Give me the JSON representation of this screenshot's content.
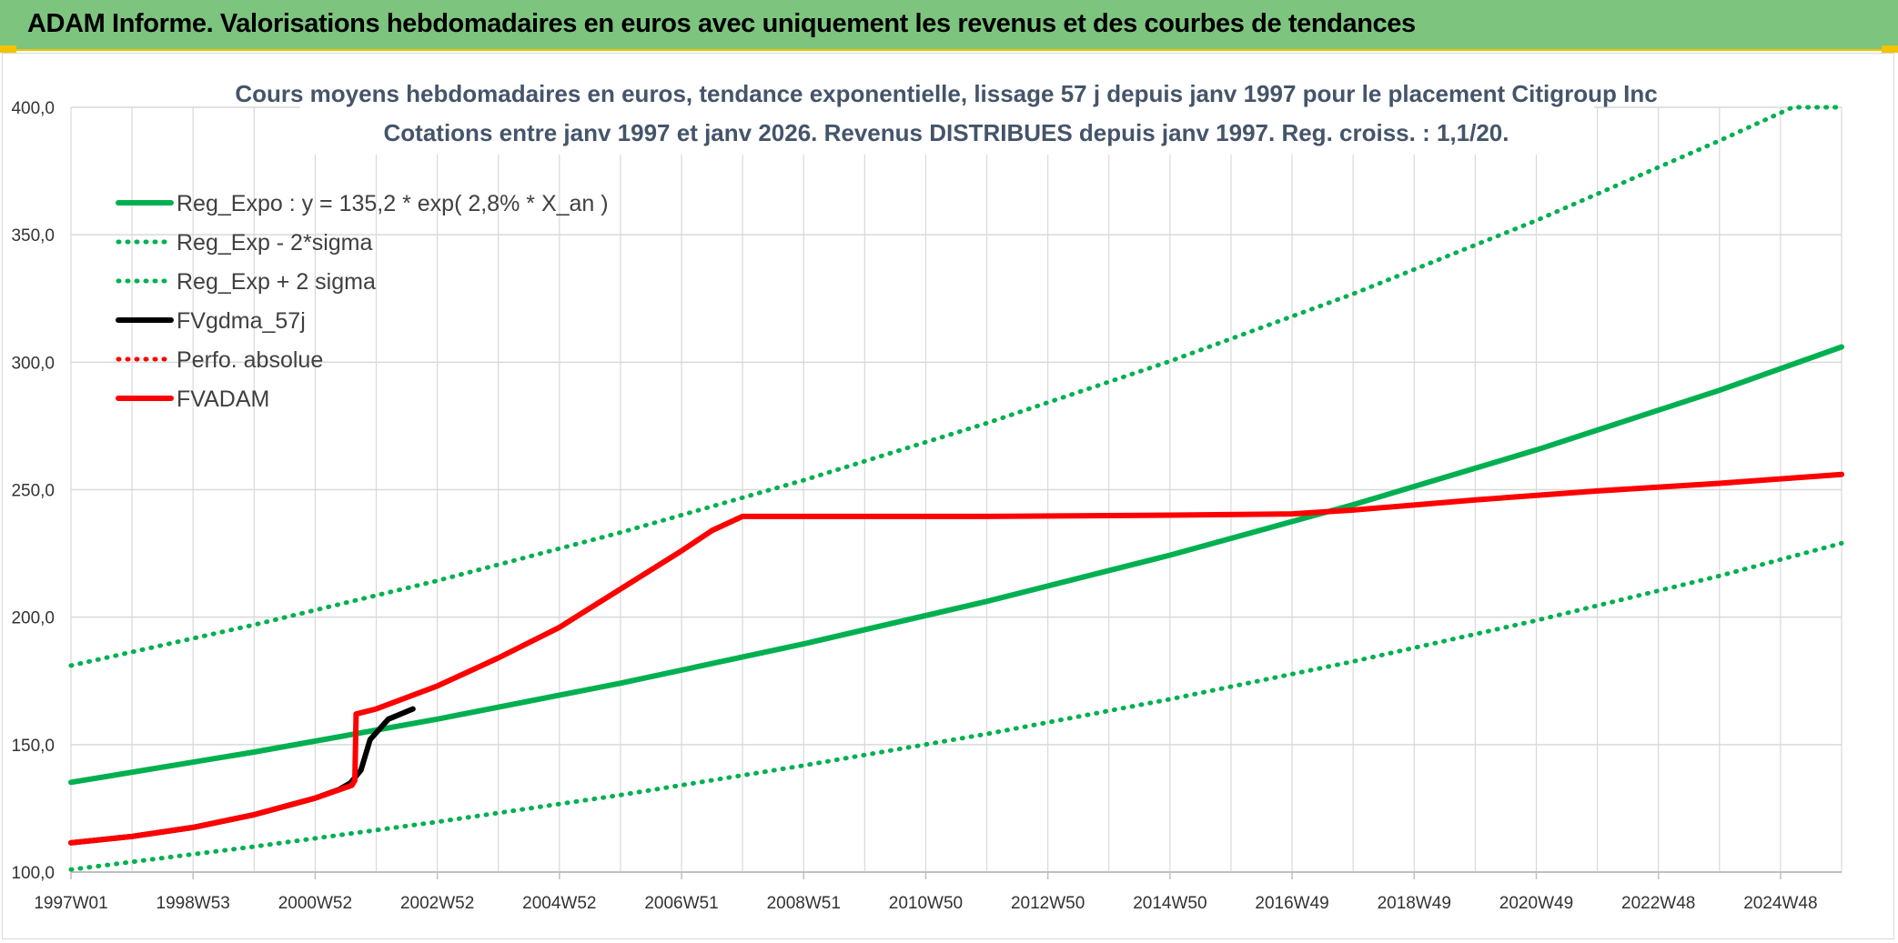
{
  "header": {
    "title": "ADAM Informe. Valorisations hebdomadaires en euros avec uniquement les revenus et des courbes de tendances"
  },
  "colors": {
    "header_bg": "#7dc47f",
    "accent_yellow": "#f3c300",
    "trend_green": "#00b050",
    "red": "#ff0000",
    "black": "#000000",
    "grid": "#d9d9d9"
  },
  "chart_data": {
    "type": "line",
    "title_lines": [
      "Cours moyens hebdomadaires en euros, tendance exponentielle, lissage 57 j depuis janv 1997 pour le placement Citigroup Inc",
      "Cotations entre janv 1997 et janv 2026. Revenus DISTRIBUES depuis janv 1997. Reg. croiss. : 1,1/20."
    ],
    "x_tick_labels": [
      "1997W01",
      "1998W53",
      "2000W52",
      "2002W52",
      "2004W52",
      "2006W51",
      "2008W51",
      "2010W50",
      "2012W50",
      "2014W50",
      "2016W49",
      "2018W49",
      "2020W49",
      "2022W48",
      "2024W48"
    ],
    "x_range": [
      1997.0,
      2026.0
    ],
    "y_tick_labels": [
      "100,0",
      "150,0",
      "200,0",
      "250,0",
      "300,0",
      "350,0",
      "400,0"
    ],
    "ylim": [
      100,
      400
    ],
    "grid": true,
    "legend_position": "top-left",
    "series": [
      {
        "name": "Reg_Expo : y = 135,2 * exp( 2,8% *  X_an )",
        "style": "solid",
        "color": "#00b050",
        "x": [
          1997.0,
          2000.0,
          2003.0,
          2006.0,
          2009.0,
          2012.0,
          2015.0,
          2018.0,
          2021.0,
          2024.0,
          2026.0
        ],
        "y": [
          135.2,
          147.1,
          160.0,
          174.1,
          189.5,
          206.2,
          224.3,
          244.1,
          265.6,
          289.0,
          306.0
        ]
      },
      {
        "name": "Reg_Exp - 2*sigma",
        "style": "dotted",
        "color": "#00b050",
        "x": [
          1997.0,
          2000.0,
          2003.0,
          2006.0,
          2009.0,
          2012.0,
          2015.0,
          2018.0,
          2021.0,
          2024.0,
          2026.0
        ],
        "y": [
          101.0,
          110.0,
          119.7,
          130.2,
          141.8,
          154.2,
          167.8,
          182.6,
          198.7,
          216.2,
          229.0
        ]
      },
      {
        "name": "Reg_Exp + 2 sigma",
        "style": "dotted",
        "color": "#00b050",
        "x": [
          1997.0,
          2000.0,
          2003.0,
          2006.0,
          2009.0,
          2012.0,
          2015.0,
          2018.0,
          2021.0,
          2024.0,
          2025.2,
          2026.0
        ],
        "y": [
          181.0,
          197.0,
          214.3,
          233.2,
          253.7,
          276.1,
          300.4,
          326.8,
          355.6,
          386.9,
          400.0,
          400.0
        ]
      },
      {
        "name": "FVgdma_57j",
        "style": "solid",
        "color": "#000000",
        "x": [
          1997.0,
          1998.0,
          1999.0,
          2000.0,
          2001.0,
          2001.4,
          2001.58,
          2001.75,
          2001.9,
          2002.2,
          2002.6
        ],
        "y": [
          111.5,
          114.0,
          117.5,
          122.5,
          129.0,
          132.5,
          135.0,
          140.0,
          152.0,
          160.0,
          164.0
        ]
      },
      {
        "name": "Perfo. absolue",
        "style": "dotted",
        "color": "#ff0000",
        "x": [],
        "y": []
      },
      {
        "name": "FVADAM",
        "style": "solid",
        "color": "#ff0000",
        "x": [
          1997.0,
          1998.0,
          1999.0,
          2000.0,
          2001.0,
          2001.6,
          2001.65,
          2001.67,
          2002.0,
          2003.0,
          2004.0,
          2005.0,
          2006.0,
          2007.0,
          2007.5,
          2008.0,
          2009.0,
          2012.0,
          2015.0,
          2017.0,
          2018.0,
          2020.0,
          2022.0,
          2024.0,
          2026.0
        ],
        "y": [
          111.5,
          114.0,
          117.5,
          122.5,
          129.0,
          134.0,
          136.0,
          162.0,
          164.0,
          173.0,
          184.0,
          196.0,
          211.0,
          226.0,
          234.0,
          239.5,
          239.5,
          239.5,
          240.0,
          240.5,
          242.0,
          246.0,
          249.5,
          252.5,
          256.0
        ]
      }
    ]
  }
}
